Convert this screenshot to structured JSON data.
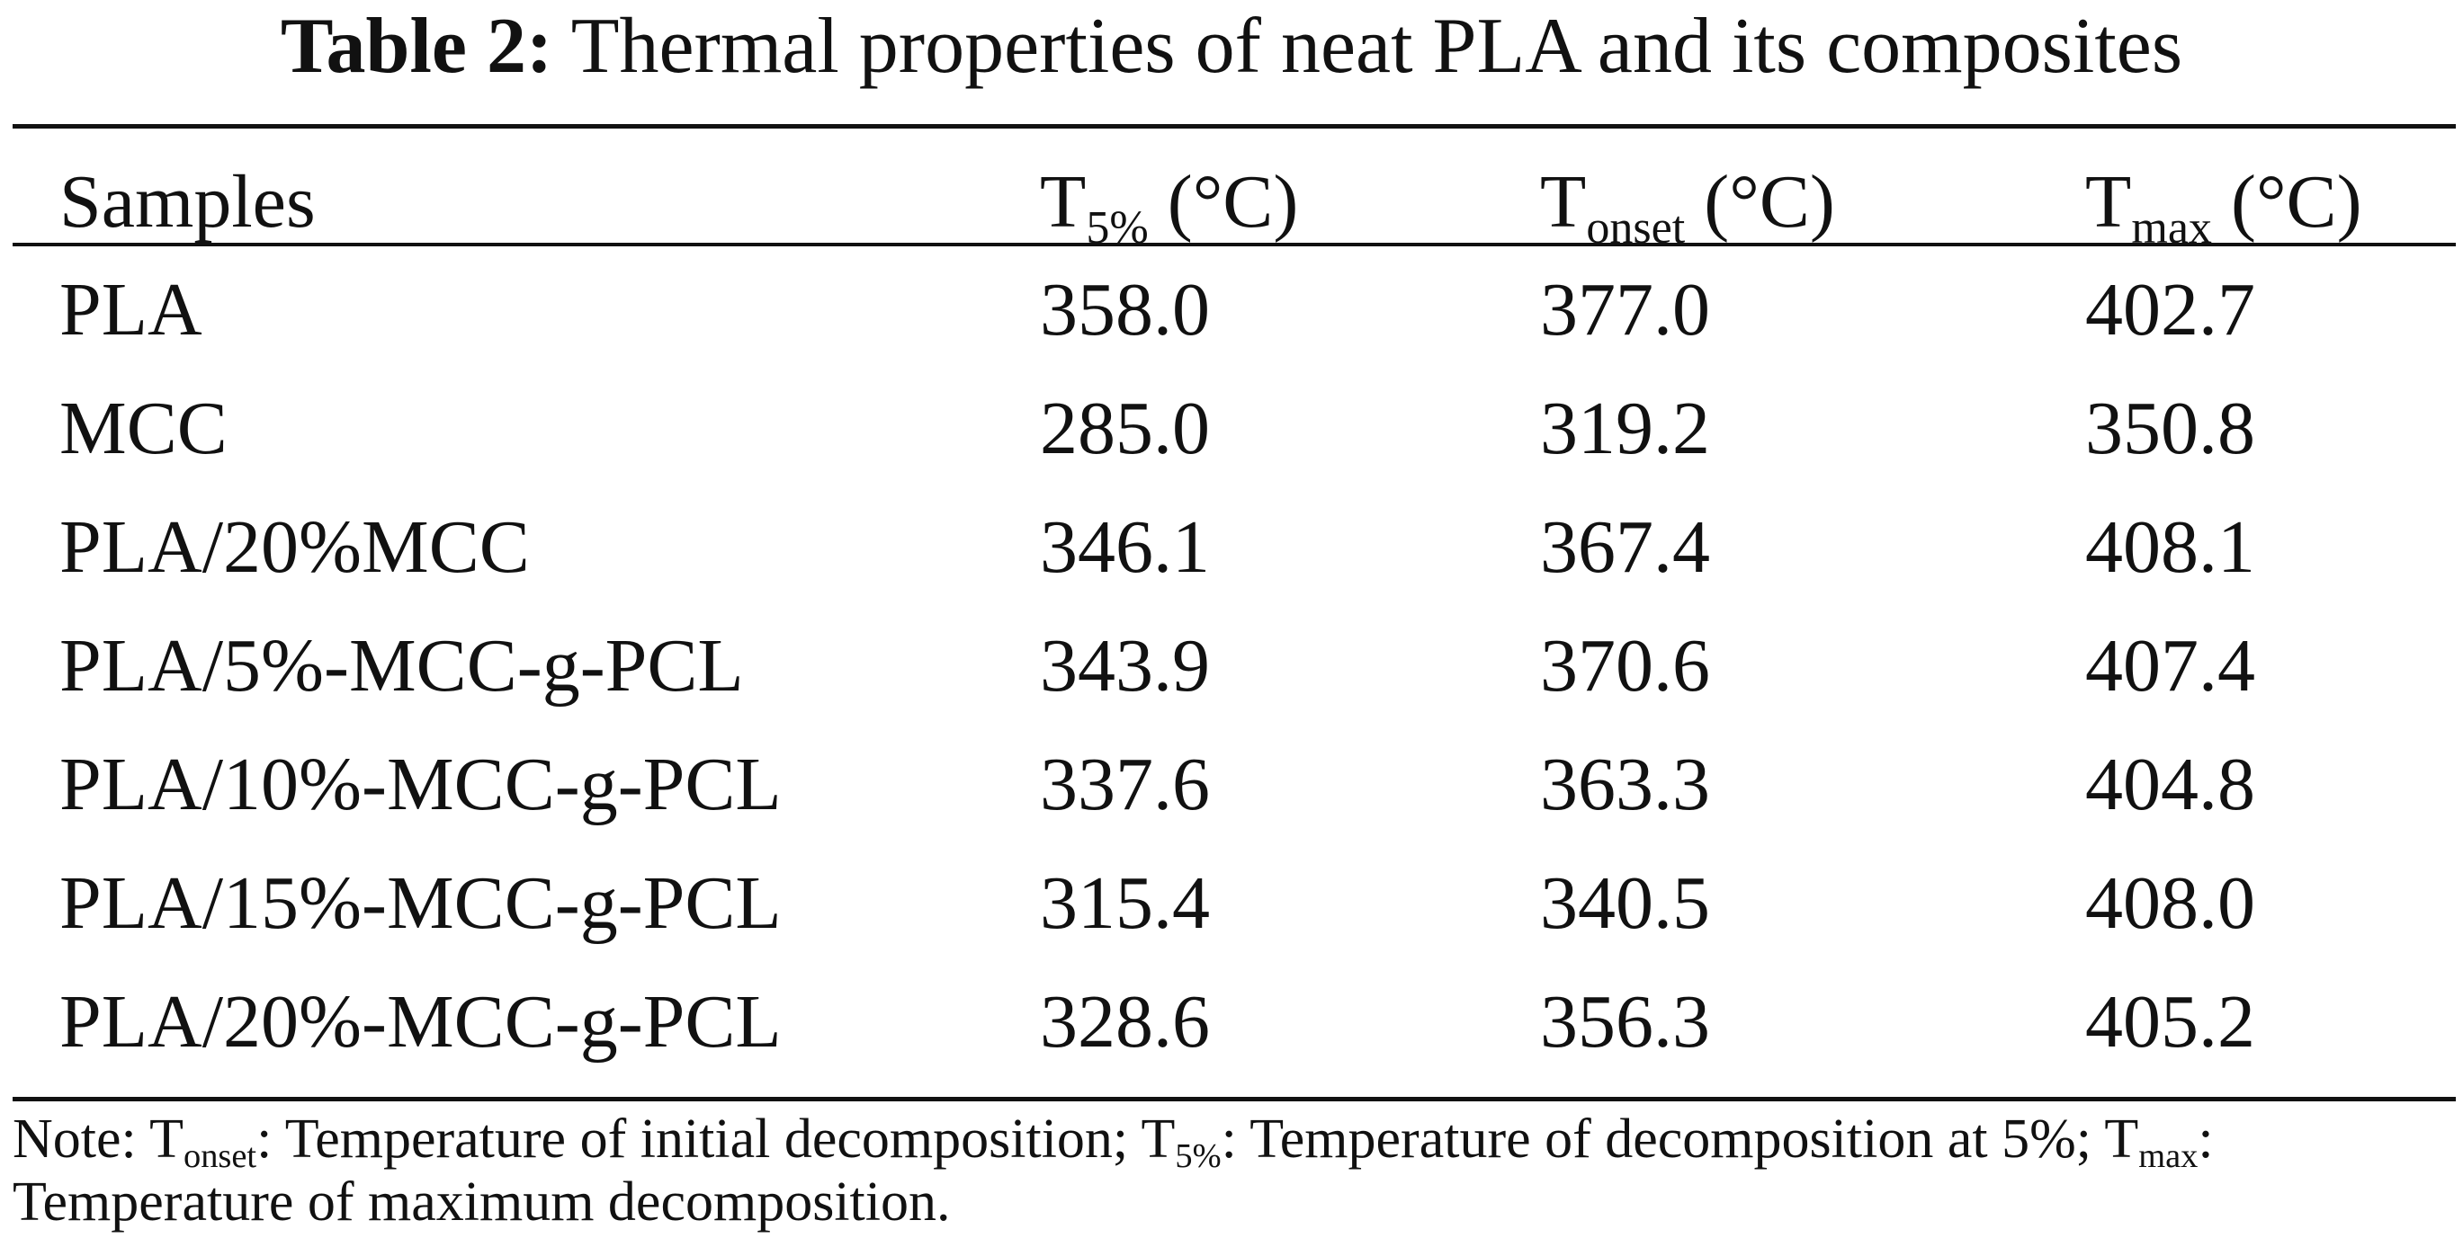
{
  "title": {
    "label": "Table 2:",
    "text": "Thermal properties of neat PLA and its composites"
  },
  "header": {
    "samples": "Samples",
    "t5": {
      "main": "T",
      "sub": "5%",
      "unit": " (°C)"
    },
    "tonset": {
      "main": "T",
      "sub": "onset",
      "unit": " (°C)"
    },
    "tmax": {
      "main": "T",
      "sub": "max",
      "unit": " (°C)"
    }
  },
  "rows": [
    {
      "sample": "PLA",
      "t5": "358.0",
      "tonset": "377.0",
      "tmax": "402.7"
    },
    {
      "sample": "MCC",
      "t5": "285.0",
      "tonset": "319.2",
      "tmax": "350.8"
    },
    {
      "sample": "PLA/20%MCC",
      "t5": "346.1",
      "tonset": "367.4",
      "tmax": "408.1"
    },
    {
      "sample": "PLA/5%-MCC-g-PCL",
      "t5": "343.9",
      "tonset": "370.6",
      "tmax": "407.4"
    },
    {
      "sample": "PLA/10%-MCC-g-PCL",
      "t5": "337.6",
      "tonset": "363.3",
      "tmax": "404.8"
    },
    {
      "sample": "PLA/15%-MCC-g-PCL",
      "t5": "315.4",
      "tonset": "340.5",
      "tmax": "408.0"
    },
    {
      "sample": "PLA/20%-MCC-g-PCL",
      "t5": "328.6",
      "tonset": "356.3",
      "tmax": "405.2"
    }
  ],
  "note": {
    "prefix": "Note: ",
    "t_main": "T",
    "onset_sub": "onset",
    "onset_text": ": Temperature of initial decomposition; ",
    "t5_sub": "5%",
    "t5_text": ": Temperature of decomposition at 5%; ",
    "tmax_sub": "max",
    "tmax_text": ": Temperature of maximum decomposition."
  }
}
